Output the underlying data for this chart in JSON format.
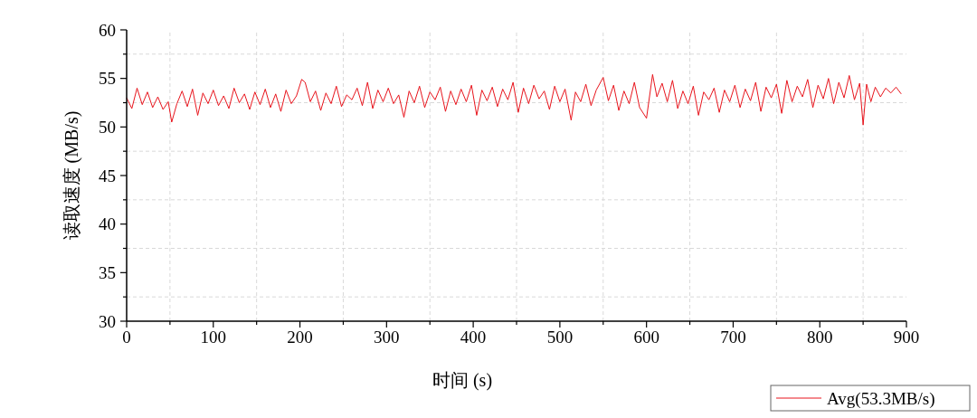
{
  "chart_data": {
    "type": "line",
    "xlabel": "时间 (s)",
    "ylabel": "读取速度 (MB/s)",
    "xlim": [
      0,
      900
    ],
    "ylim": [
      30,
      60
    ],
    "xticks": [
      0,
      {
        "value": 50,
        "label": null
      },
      100,
      {
        "value": 150,
        "label": null
      },
      200,
      {
        "value": 250,
        "label": null
      },
      300,
      {
        "value": 350,
        "label": null
      },
      400,
      {
        "value": 450,
        "label": null
      },
      500,
      {
        "value": 550,
        "label": null
      },
      600,
      {
        "value": 650,
        "label": null
      },
      700,
      {
        "value": 750,
        "label": null
      },
      800,
      {
        "value": 850,
        "label": null
      },
      900
    ],
    "yticks": [
      30,
      {
        "value": 32.5,
        "label": null
      },
      35,
      {
        "value": 37.5,
        "label": null
      },
      40,
      {
        "value": 42.5,
        "label": null
      },
      45,
      {
        "value": 47.5,
        "label": null
      },
      50,
      {
        "value": 52.5,
        "label": null
      },
      55,
      {
        "value": 57.5,
        "label": null
      },
      60
    ],
    "grid": true,
    "legend": "bottom right",
    "marker": "none",
    "line_style": "solid",
    "x": [
      0,
      6,
      12,
      18,
      24,
      30,
      36,
      42,
      48,
      52,
      58,
      64,
      70,
      76,
      82,
      88,
      94,
      100,
      106,
      112,
      118,
      124,
      130,
      136,
      142,
      148,
      154,
      160,
      166,
      172,
      178,
      184,
      190,
      196,
      202,
      206,
      212,
      218,
      224,
      230,
      236,
      242,
      248,
      254,
      260,
      266,
      272,
      278,
      284,
      290,
      296,
      302,
      308,
      314,
      320,
      326,
      332,
      338,
      344,
      350,
      356,
      362,
      368,
      374,
      380,
      386,
      392,
      398,
      404,
      410,
      416,
      422,
      428,
      434,
      440,
      446,
      452,
      458,
      464,
      470,
      476,
      482,
      488,
      494,
      500,
      506,
      513,
      518,
      524,
      530,
      536,
      542,
      550,
      556,
      562,
      568,
      574,
      580,
      586,
      592,
      600,
      607,
      612,
      618,
      624,
      630,
      636,
      642,
      648,
      654,
      660,
      666,
      672,
      678,
      684,
      690,
      696,
      702,
      708,
      714,
      720,
      726,
      732,
      738,
      744,
      750,
      756,
      762,
      768,
      774,
      780,
      786,
      792,
      798,
      804,
      810,
      816,
      822,
      828,
      834,
      840,
      846,
      850,
      854,
      859,
      864,
      870,
      876,
      882,
      888,
      894
    ],
    "series": [
      {
        "name": "Avg(53.3MB/s)",
        "color": "#e8141c",
        "values": [
          53.0,
          51.9,
          54.0,
          52.3,
          53.6,
          52.0,
          53.1,
          51.8,
          52.6,
          50.5,
          52.4,
          53.7,
          52.1,
          53.9,
          51.2,
          53.5,
          52.4,
          53.8,
          52.2,
          53.2,
          51.9,
          54.0,
          52.5,
          53.4,
          51.8,
          53.6,
          52.3,
          53.9,
          52.0,
          53.4,
          51.6,
          53.8,
          52.4,
          53.2,
          54.9,
          54.6,
          52.6,
          53.7,
          51.7,
          53.5,
          52.4,
          54.2,
          52.1,
          53.3,
          52.8,
          54.0,
          52.2,
          54.6,
          51.9,
          53.8,
          52.6,
          54.0,
          52.4,
          53.3,
          51.0,
          53.7,
          52.5,
          54.2,
          52.0,
          53.6,
          52.8,
          54.1,
          51.6,
          53.7,
          52.3,
          53.9,
          52.6,
          54.3,
          51.2,
          53.8,
          52.7,
          54.1,
          52.1,
          53.9,
          52.8,
          54.6,
          51.5,
          54.0,
          52.4,
          54.3,
          52.9,
          53.7,
          51.8,
          54.2,
          52.6,
          53.9,
          50.7,
          53.6,
          52.6,
          54.4,
          52.2,
          53.8,
          55.1,
          52.7,
          54.3,
          51.7,
          53.7,
          52.4,
          54.6,
          52.0,
          50.9,
          55.4,
          53.1,
          54.5,
          52.6,
          54.8,
          51.9,
          53.7,
          52.4,
          54.2,
          51.2,
          53.6,
          52.8,
          54.0,
          51.5,
          53.8,
          52.6,
          54.3,
          52.0,
          53.9,
          52.7,
          54.6,
          51.6,
          54.1,
          53.0,
          54.4,
          51.4,
          54.8,
          52.6,
          54.2,
          53.1,
          54.9,
          52.0,
          54.3,
          52.9,
          55.0,
          52.4,
          54.6,
          53.0,
          55.3,
          52.8,
          54.5,
          50.2,
          54.4,
          52.6,
          54.1,
          53.1,
          54.0,
          53.5,
          54.1,
          53.4
        ]
      }
    ]
  }
}
